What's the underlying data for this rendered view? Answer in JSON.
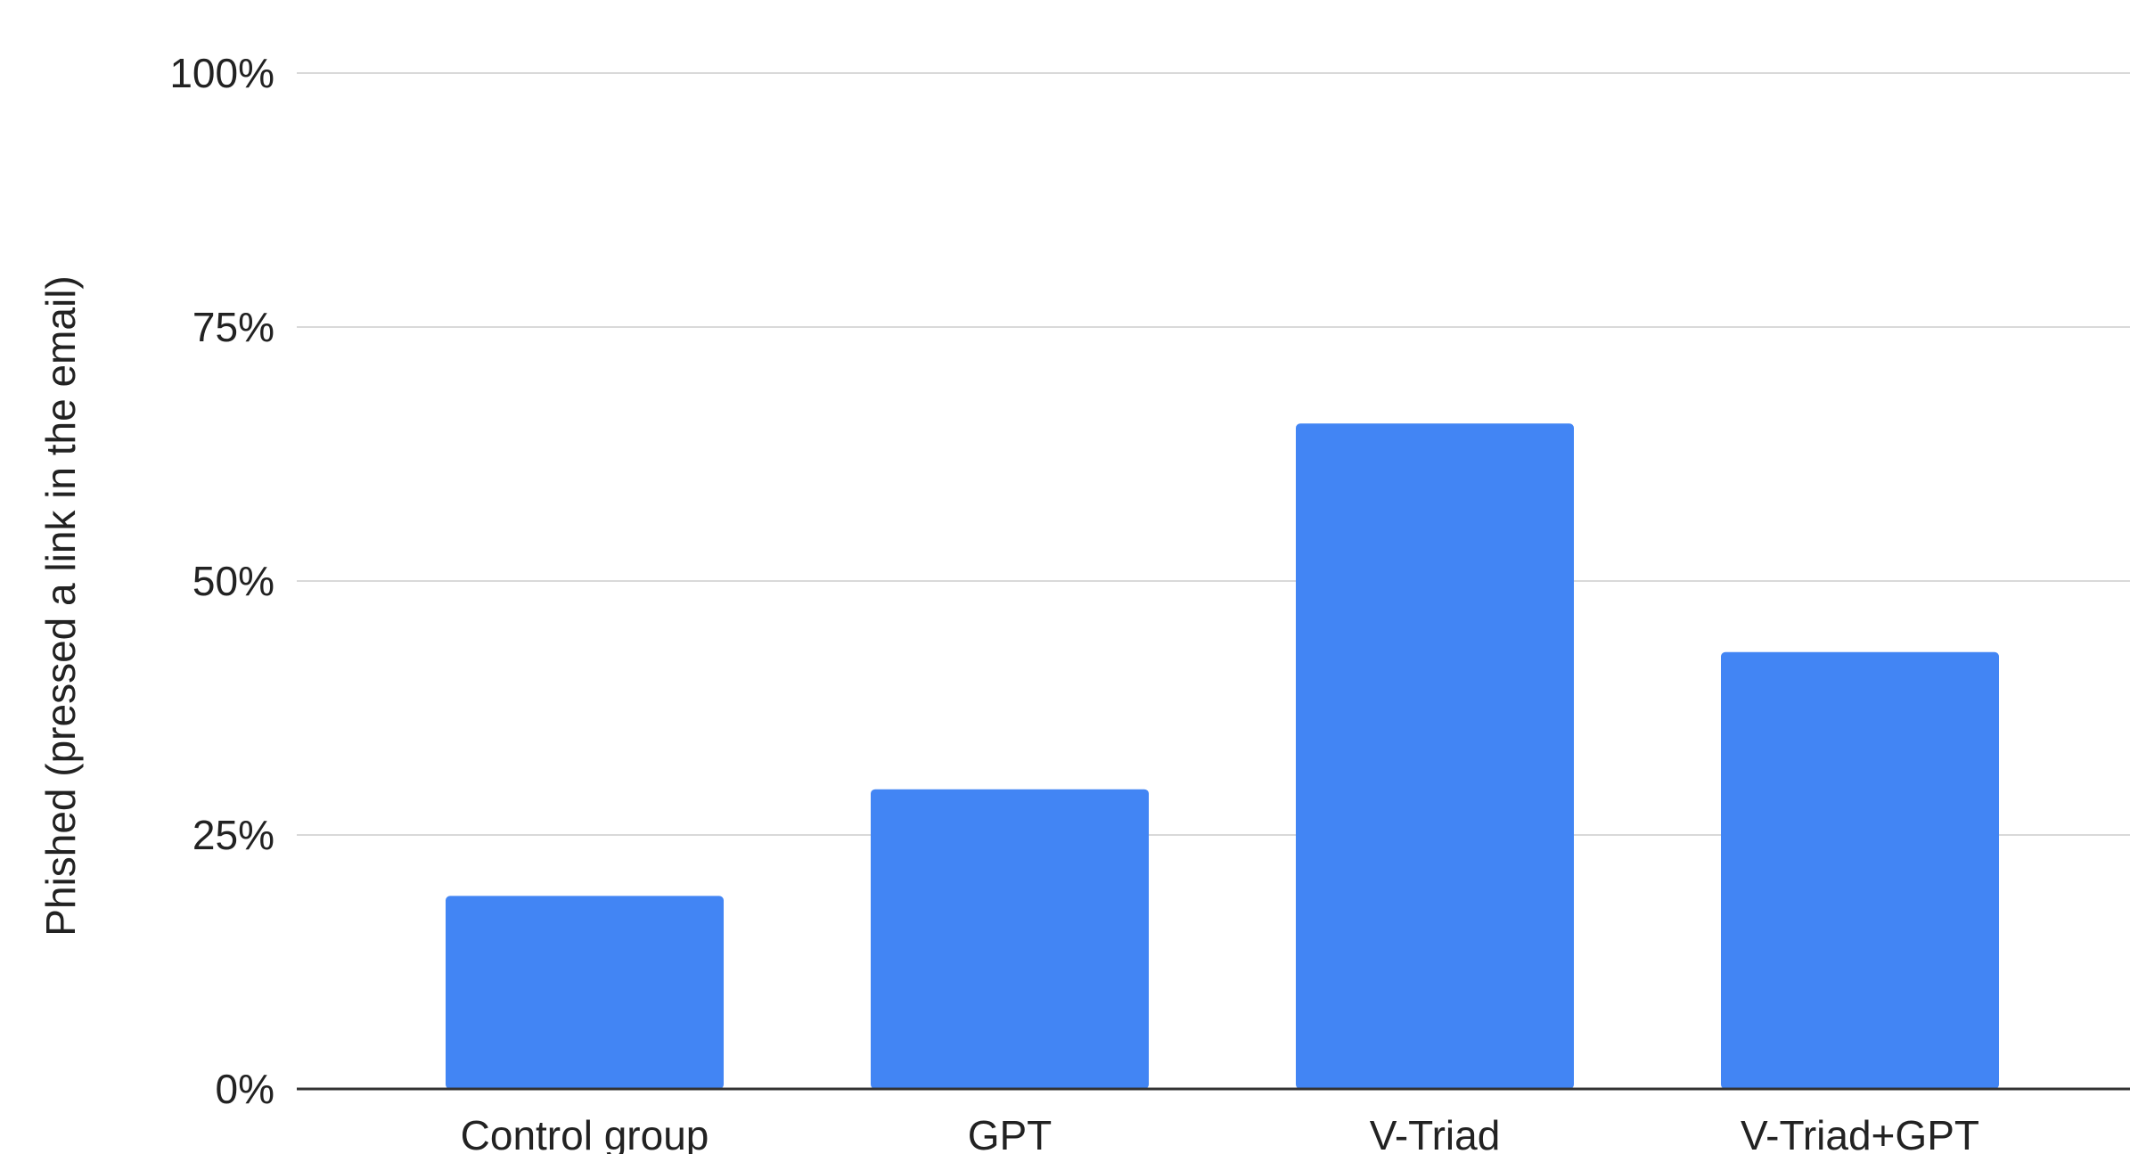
{
  "chart_data": {
    "type": "bar",
    "title": "",
    "xlabel": "",
    "ylabel": "Phished (pressed a link in the email)",
    "categories": [
      "Control group",
      "GPT",
      "V-Triad",
      "V-Triad+GPT"
    ],
    "values": [
      19,
      29.5,
      65.5,
      43
    ],
    "unit": "%",
    "ylim": [
      0,
      100
    ],
    "yticks": [
      "0%",
      "25%",
      "50%",
      "75%",
      "100%"
    ],
    "ytick_values": [
      0,
      25,
      50,
      75,
      100
    ],
    "grid": true,
    "legend": "none",
    "colors": {
      "bar": "#4285f4",
      "grid": "#d9d9d9",
      "baseline": "#333333"
    }
  }
}
